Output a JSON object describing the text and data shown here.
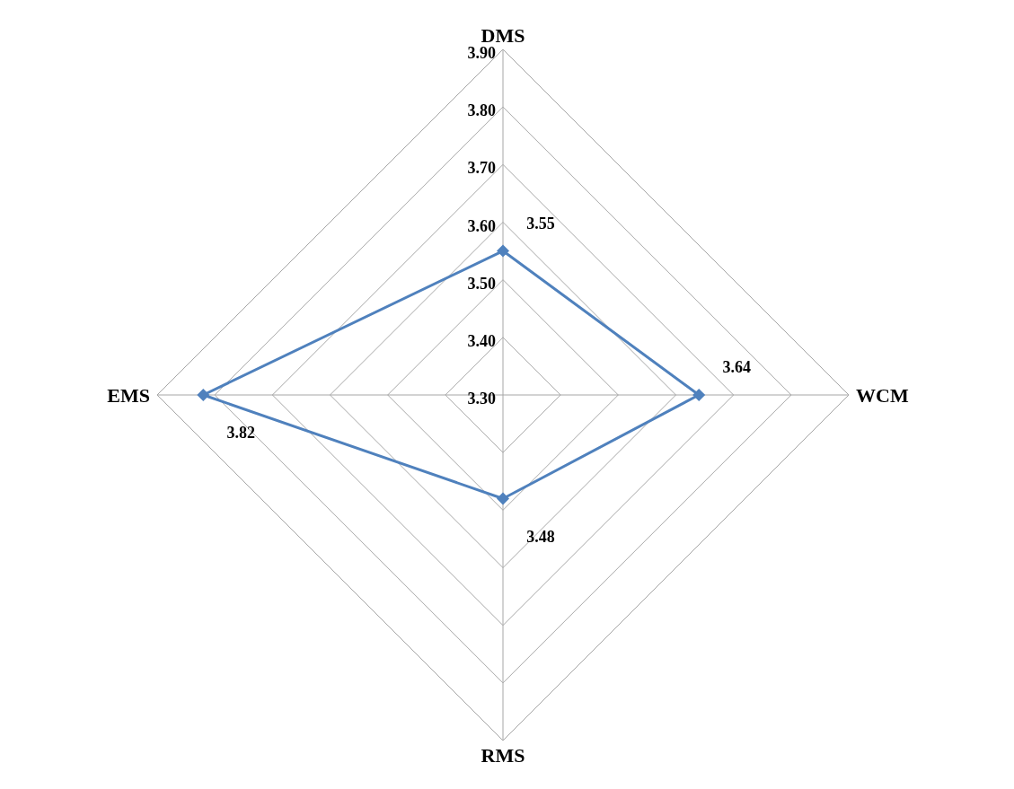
{
  "chart_data": {
    "type": "radar",
    "categories": [
      "DMS",
      "WCM",
      "RMS",
      "EMS"
    ],
    "series": [
      {
        "color": "#4f81bd",
        "values": [
          3.55,
          3.64,
          3.48,
          3.82
        ]
      }
    ],
    "ylim": [
      3.3,
      3.9
    ],
    "yticks": [
      {
        "value": 3.3,
        "label": "3.30"
      },
      {
        "value": 3.4,
        "label": "3.40"
      },
      {
        "value": 3.5,
        "label": "3.50"
      },
      {
        "value": 3.6,
        "label": "3.60"
      },
      {
        "value": 3.7,
        "label": "3.70"
      },
      {
        "value": 3.8,
        "label": "3.80"
      },
      {
        "value": 3.9,
        "label": "3.90"
      }
    ],
    "grid": true,
    "marker": "diamond",
    "data_labels": true
  }
}
